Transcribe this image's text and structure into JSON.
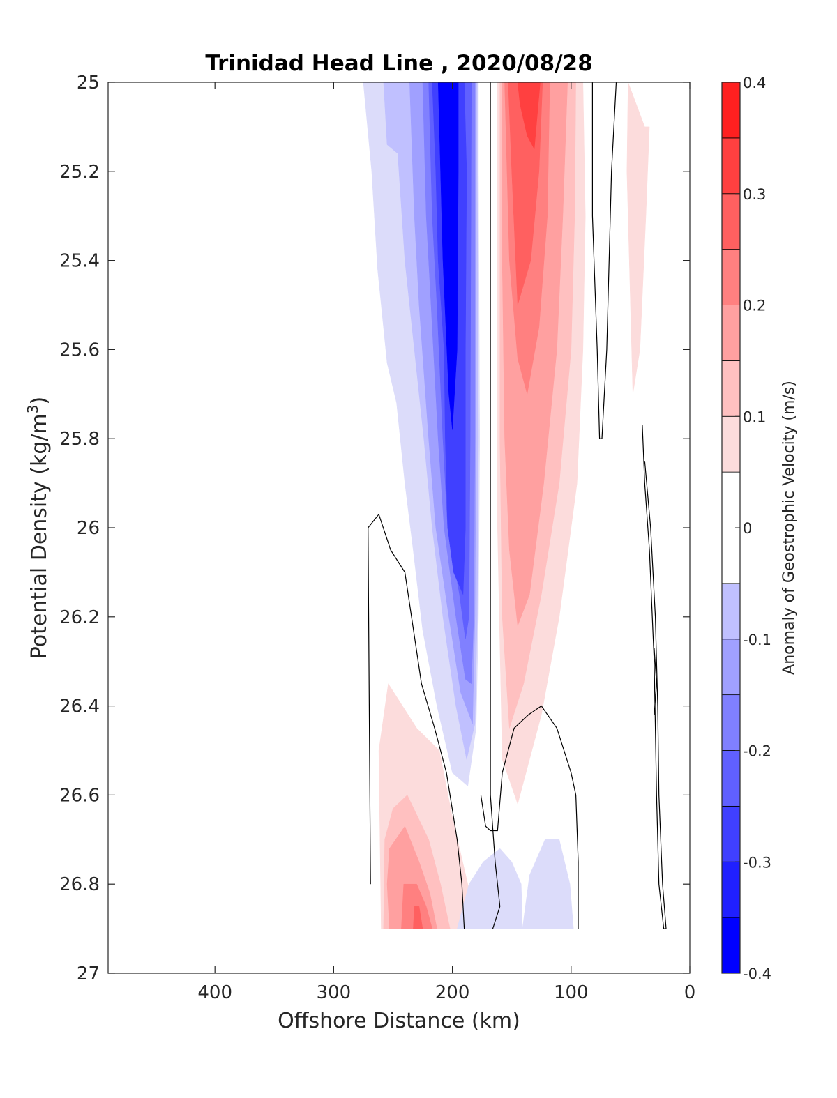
{
  "chart_data": {
    "type": "contourf",
    "title": "Trinidad Head Line , 2020/08/28",
    "xlabel": "Offshore Distance (km)",
    "ylabel_main": "Potential Density (kg/m",
    "ylabel_sup": "3",
    "ylabel_close": ")",
    "x_ticks": [
      "400",
      "300",
      "200",
      "100",
      "0"
    ],
    "y_ticks": [
      "25",
      "25.2",
      "25.4",
      "25.6",
      "25.8",
      "26",
      "26.2",
      "26.4",
      "26.6",
      "26.8",
      "27"
    ],
    "xlim": [
      490,
      0
    ],
    "x_reversed": true,
    "ylim": [
      25,
      27
    ],
    "y_reversed": true,
    "colorbar": {
      "label": "Anomaly of Geostrophic Velocity (m/s)",
      "tick_labels": [
        "0.4",
        "0.3",
        "0.2",
        "0.1",
        "0",
        "-0.1",
        "-0.2",
        "-0.3",
        "-0.4"
      ],
      "range": [
        -0.4,
        0.4
      ],
      "levels": [
        -0.4,
        -0.35,
        -0.3,
        -0.25,
        -0.2,
        -0.15,
        -0.1,
        -0.05,
        0.05,
        0.1,
        0.15,
        0.2,
        0.25,
        0.3,
        0.35,
        0.4
      ],
      "colors": [
        "#0000ff",
        "#2020ff",
        "#4040ff",
        "#6060ff",
        "#8080ff",
        "#a0a0ff",
        "#c0c0ff",
        "#dcdcfa",
        "#ffffff",
        "#fcdcdc",
        "#ffc0c0",
        "#ffa0a0",
        "#ff8080",
        "#ff6060",
        "#ff4040",
        "#ff2020",
        "#ff0000"
      ]
    },
    "regions": [
      {
        "value": -0.075,
        "color": "#dcdcfa",
        "points": [
          [
            275,
            25
          ],
          [
            268,
            25.2
          ],
          [
            263,
            25.42
          ],
          [
            255,
            25.63
          ],
          [
            247,
            25.72
          ],
          [
            240,
            25.9
          ],
          [
            233,
            26.05
          ],
          [
            225,
            26.23
          ],
          [
            213,
            26.4
          ],
          [
            200,
            26.55
          ],
          [
            187,
            26.58
          ],
          [
            180,
            26.45
          ],
          [
            178,
            26.2
          ],
          [
            177,
            25.8
          ],
          [
            178,
            25.2
          ],
          [
            178,
            25
          ]
        ]
      },
      {
        "value": -0.125,
        "color": "#c0c0ff",
        "points": [
          [
            258,
            25
          ],
          [
            255,
            25.14
          ],
          [
            246,
            25.16
          ],
          [
            240,
            25.4
          ],
          [
            232,
            25.6
          ],
          [
            224,
            25.8
          ],
          [
            217,
            26
          ],
          [
            208,
            26.2
          ],
          [
            197,
            26.4
          ],
          [
            188,
            26.52
          ],
          [
            181,
            26.44
          ],
          [
            179,
            26.2
          ],
          [
            178,
            25.8
          ],
          [
            179,
            25.2
          ],
          [
            179,
            25
          ]
        ]
      },
      {
        "value": -0.175,
        "color": "#a0a0ff",
        "points": [
          [
            236,
            25
          ],
          [
            232,
            25.3
          ],
          [
            228,
            25.5
          ],
          [
            220,
            25.8
          ],
          [
            214,
            26
          ],
          [
            203,
            26.2
          ],
          [
            193,
            26.37
          ],
          [
            183,
            26.44
          ],
          [
            181,
            26.2
          ],
          [
            180,
            25.8
          ],
          [
            180,
            25.2
          ],
          [
            180,
            25
          ]
        ]
      },
      {
        "value": -0.225,
        "color": "#8080ff",
        "points": [
          [
            225,
            25
          ],
          [
            222,
            25.3
          ],
          [
            218,
            25.5
          ],
          [
            212,
            25.8
          ],
          [
            207,
            26
          ],
          [
            197,
            26.2
          ],
          [
            189,
            26.34
          ],
          [
            184,
            26.35
          ],
          [
            182,
            26.2
          ],
          [
            181,
            25.8
          ],
          [
            181,
            25
          ]
        ]
      },
      {
        "value": -0.275,
        "color": "#6060ff",
        "points": [
          [
            220,
            25
          ],
          [
            217,
            25.3
          ],
          [
            213,
            25.5
          ],
          [
            208,
            25.8
          ],
          [
            204,
            26
          ],
          [
            194,
            26.15
          ],
          [
            189,
            26.25
          ],
          [
            186,
            26.2
          ],
          [
            185,
            25.8
          ],
          [
            184,
            25
          ]
        ]
      },
      {
        "value": -0.325,
        "color": "#4040ff",
        "points": [
          [
            217,
            25
          ],
          [
            214,
            25.2
          ],
          [
            212,
            25.4
          ],
          [
            207,
            25.6
          ],
          [
            206,
            25.8
          ],
          [
            204,
            26
          ],
          [
            199,
            26.1
          ],
          [
            191,
            26.15
          ],
          [
            189,
            26
          ],
          [
            189,
            25.6
          ],
          [
            188,
            25.2
          ],
          [
            190,
            25
          ]
        ]
      },
      {
        "value": -0.375,
        "color": "#0000ff",
        "points": [
          [
            212,
            25
          ],
          [
            210,
            25.2
          ],
          [
            208,
            25.4
          ],
          [
            203,
            25.7
          ],
          [
            200,
            25.78
          ],
          [
            196,
            25.6
          ],
          [
            195,
            25.2
          ],
          [
            195,
            25
          ]
        ]
      },
      {
        "value": 0.075,
        "color": "#fcdcdc",
        "points": [
          [
            162,
            25
          ],
          [
            90,
            25
          ],
          [
            88,
            25.3
          ],
          [
            90,
            25.6
          ],
          [
            95,
            25.9
          ],
          [
            110,
            26.2
          ],
          [
            125,
            26.42
          ],
          [
            145,
            26.62
          ],
          [
            158,
            26.52
          ],
          [
            162,
            26
          ],
          [
            162,
            25.5
          ]
        ]
      },
      {
        "value": 0.125,
        "color": "#ffc0c0",
        "points": [
          [
            160,
            25
          ],
          [
            96,
            25
          ],
          [
            97,
            25.3
          ],
          [
            100,
            25.6
          ],
          [
            110,
            25.9
          ],
          [
            125,
            26.15
          ],
          [
            140,
            26.35
          ],
          [
            152,
            26.45
          ],
          [
            158,
            26.2
          ],
          [
            160,
            25.8
          ],
          [
            160,
            25.4
          ]
        ]
      },
      {
        "value": 0.175,
        "color": "#ffa0a0",
        "points": [
          [
            158,
            25
          ],
          [
            103,
            25
          ],
          [
            107,
            25.3
          ],
          [
            112,
            25.6
          ],
          [
            123,
            25.9
          ],
          [
            135,
            26.15
          ],
          [
            145,
            26.22
          ],
          [
            152,
            26.05
          ],
          [
            156,
            25.8
          ],
          [
            158,
            25.4
          ]
        ]
      },
      {
        "value": 0.225,
        "color": "#ff8080",
        "points": [
          [
            156,
            25
          ],
          [
            118,
            25
          ],
          [
            120,
            25.3
          ],
          [
            127,
            25.55
          ],
          [
            137,
            25.7
          ],
          [
            145,
            25.62
          ],
          [
            152,
            25.4
          ],
          [
            154,
            25.2
          ]
        ]
      },
      {
        "value": 0.275,
        "color": "#ff6060",
        "points": [
          [
            153,
            25
          ],
          [
            124,
            25
          ],
          [
            127,
            25.2
          ],
          [
            134,
            25.4
          ],
          [
            145,
            25.5
          ],
          [
            150,
            25.2
          ]
        ]
      },
      {
        "value": 0.325,
        "color": "#ff4040",
        "points": [
          [
            145,
            25
          ],
          [
            126,
            25
          ],
          [
            131,
            25.15
          ],
          [
            137,
            25.12
          ],
          [
            143,
            25.05
          ]
        ]
      },
      {
        "value": 0.075,
        "color": "#fcdcdc",
        "points": [
          [
            52,
            25
          ],
          [
            38,
            25.1
          ],
          [
            34,
            25.1
          ],
          [
            37,
            25.3
          ],
          [
            42,
            25.6
          ],
          [
            48,
            25.7
          ],
          [
            51,
            25.4
          ],
          [
            53,
            25.2
          ]
        ]
      },
      {
        "value": 0.075,
        "color": "#fcdcdc",
        "points": [
          [
            260,
            26.9
          ],
          [
            262,
            26.5
          ],
          [
            254,
            26.35
          ],
          [
            230,
            26.45
          ],
          [
            211,
            26.5
          ],
          [
            200,
            26.65
          ],
          [
            187,
            26.8
          ],
          [
            180,
            26.9
          ]
        ]
      },
      {
        "value": 0.125,
        "color": "#ffc0c0",
        "points": [
          [
            258,
            26.9
          ],
          [
            257,
            26.7
          ],
          [
            250,
            26.63
          ],
          [
            238,
            26.6
          ],
          [
            220,
            26.7
          ],
          [
            210,
            26.8
          ],
          [
            202,
            26.9
          ]
        ]
      },
      {
        "value": 0.175,
        "color": "#ffa0a0",
        "points": [
          [
            253,
            26.9
          ],
          [
            255,
            26.8
          ],
          [
            253,
            26.72
          ],
          [
            240,
            26.67
          ],
          [
            228,
            26.75
          ],
          [
            219,
            26.82
          ],
          [
            213,
            26.9
          ]
        ]
      },
      {
        "value": 0.225,
        "color": "#ff8080",
        "points": [
          [
            243,
            26.9
          ],
          [
            241,
            26.8
          ],
          [
            230,
            26.8
          ],
          [
            222,
            26.85
          ],
          [
            217,
            26.9
          ]
        ]
      },
      {
        "value": 0.275,
        "color": "#ff6060",
        "points": [
          [
            233,
            26.9
          ],
          [
            232,
            26.85
          ],
          [
            228,
            26.85
          ],
          [
            225,
            26.9
          ]
        ]
      },
      {
        "value": -0.075,
        "color": "#dcdcfa",
        "points": [
          [
            141,
            26.9
          ],
          [
            142,
            26.8
          ],
          [
            150,
            26.75
          ],
          [
            160,
            26.72
          ],
          [
            174,
            26.75
          ],
          [
            186,
            26.8
          ],
          [
            196,
            26.9
          ],
          [
            98,
            26.9
          ],
          [
            101,
            26.8
          ],
          [
            110,
            26.7
          ],
          [
            122,
            26.7
          ],
          [
            135,
            26.78
          ]
        ]
      }
    ],
    "zero_contours": [
      [
        [
          168,
          25
        ],
        [
          168,
          26
        ],
        [
          168,
          26.6
        ],
        [
          164,
          26.75
        ],
        [
          160,
          26.85
        ],
        [
          166,
          26.9
        ]
      ],
      [
        [
          82,
          25
        ],
        [
          82,
          25.3
        ],
        [
          78,
          25.6
        ],
        [
          76,
          25.8
        ],
        [
          74,
          25.8
        ],
        [
          70,
          25.6
        ],
        [
          66,
          25.2
        ],
        [
          62,
          25
        ]
      ],
      [
        [
          269,
          26.8
        ],
        [
          270,
          26.4
        ],
        [
          271,
          26
        ],
        [
          262,
          25.97
        ],
        [
          252,
          26.05
        ],
        [
          240,
          26.1
        ],
        [
          226,
          26.35
        ],
        [
          215,
          26.45
        ],
        [
          205,
          26.55
        ],
        [
          196,
          26.7
        ],
        [
          192,
          26.8
        ],
        [
          190,
          26.9
        ]
      ],
      [
        [
          40,
          25.77
        ],
        [
          38,
          25.9
        ],
        [
          34,
          26.05
        ],
        [
          30,
          26.3
        ],
        [
          28,
          26.6
        ],
        [
          26,
          26.8
        ],
        [
          22,
          26.9
        ],
        [
          20,
          26.9
        ],
        [
          23,
          26.8
        ],
        [
          26,
          26.6
        ],
        [
          27,
          26.4
        ],
        [
          29,
          26.2
        ],
        [
          33,
          26
        ],
        [
          38,
          25.85
        ]
      ],
      [
        [
          30,
          26.27
        ],
        [
          28,
          26.35
        ],
        [
          30,
          26.42
        ]
      ],
      [
        [
          176,
          26.6
        ],
        [
          172,
          26.67
        ],
        [
          168,
          26.68
        ],
        [
          162,
          26.68
        ],
        [
          158,
          26.55
        ],
        [
          148,
          26.45
        ],
        [
          136,
          26.42
        ],
        [
          125,
          26.4
        ],
        [
          112,
          26.45
        ],
        [
          100,
          26.55
        ],
        [
          96,
          26.6
        ],
        [
          94,
          26.75
        ],
        [
          94,
          26.9
        ]
      ]
    ]
  }
}
